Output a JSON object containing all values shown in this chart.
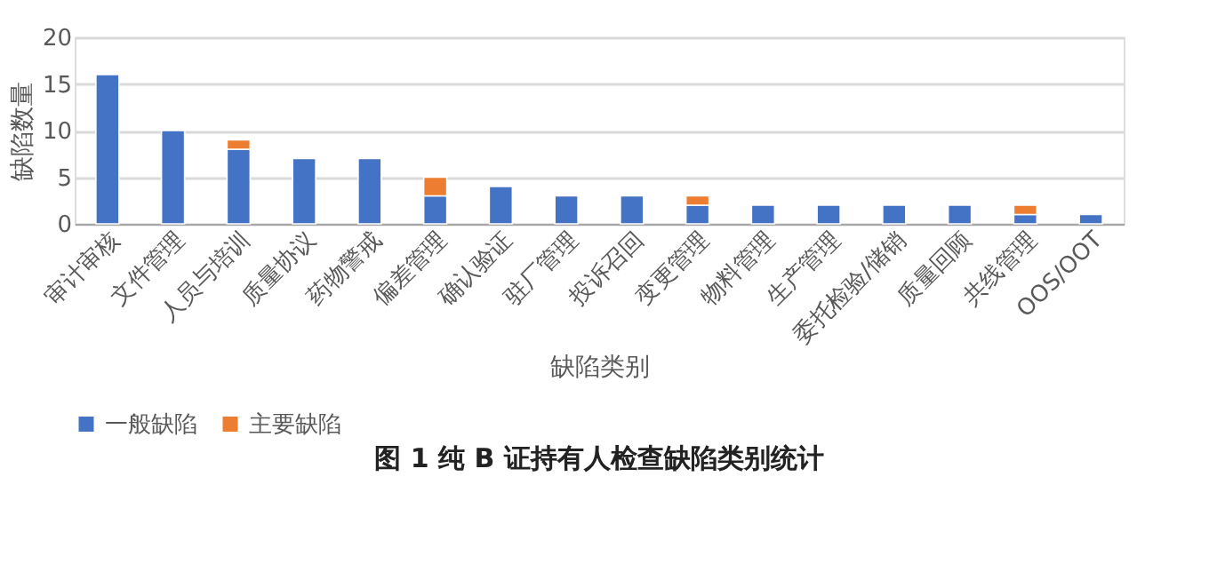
{
  "chart_data": {
    "type": "bar",
    "title": "图 1  纯 B 证持有人检查缺陷类别统计",
    "xlabel": "缺陷类别",
    "ylabel": "缺陷数量",
    "categories": [
      "审计审核",
      "文件管理",
      "人员与培训",
      "质量协议",
      "药物警戒",
      "偏差管理",
      "确认验证",
      "驻厂管理",
      "投诉召回",
      "变更管理",
      "物料管理",
      "生产管理",
      "委托检验/储销",
      "质量回顾",
      "共线管理",
      "OOS/OOT"
    ],
    "stacked": true,
    "series": [
      {
        "name": "一般缺陷",
        "color": "#4472c4",
        "values": [
          16,
          10,
          8,
          7,
          7,
          3,
          4,
          3,
          3,
          2,
          2,
          2,
          2,
          2,
          1,
          1
        ]
      },
      {
        "name": "主要缺陷",
        "color": "#ed7d31",
        "values": [
          null,
          null,
          1,
          null,
          null,
          2,
          null,
          null,
          null,
          1,
          null,
          null,
          null,
          null,
          1,
          null
        ]
      }
    ],
    "ylim": [
      0,
      20
    ],
    "yticks": [
      0,
      5,
      10,
      15,
      20
    ],
    "grid": "y",
    "legend": "bottom"
  }
}
